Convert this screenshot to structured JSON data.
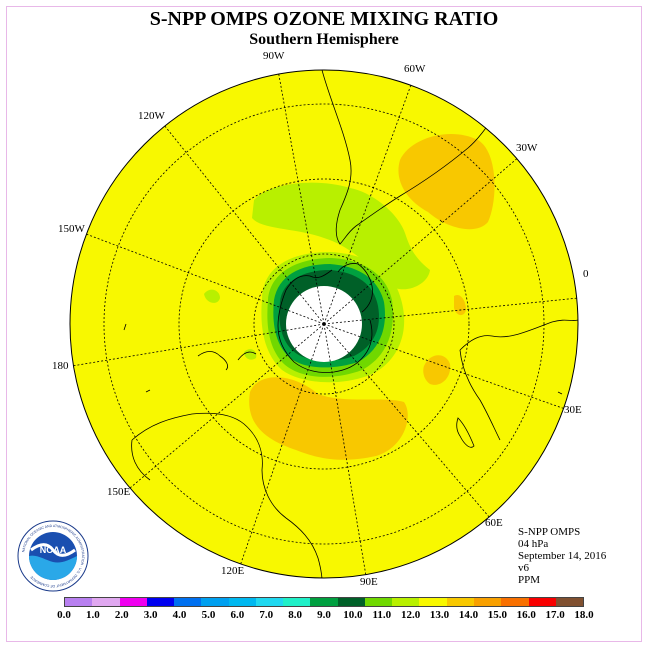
{
  "title": "S-NPP OMPS OZONE MIXING RATIO",
  "subtitle": "Southern Hemisphere",
  "longitude_labels": [
    "90W",
    "60W",
    "30W",
    "0",
    "30E",
    "60E",
    "90E",
    "120E",
    "150E",
    "180",
    "150W",
    "120W"
  ],
  "info": {
    "line1": "S-NPP OMPS",
    "line2": "04 hPa",
    "line3": "September 14, 2016",
    "line4": "v6",
    "line5": "PPM"
  },
  "logo": {
    "wordmark": "NOAA",
    "ring_text": "NATIONAL OCEANIC AND ATMOSPHERIC ADMINISTRATION · U.S. DEPARTMENT OF COMMERCE"
  },
  "colorbar": {
    "ticks": [
      "0.0",
      "1.0",
      "2.0",
      "3.0",
      "4.0",
      "5.0",
      "6.0",
      "7.0",
      "8.0",
      "9.0",
      "10.0",
      "11.0",
      "12.0",
      "13.0",
      "14.0",
      "15.0",
      "16.0",
      "17.0",
      "18.0"
    ],
    "colors": [
      "#b880f0",
      "#e0a8f0",
      "#f000f0",
      "#0000f0",
      "#0070f0",
      "#00a0f0",
      "#00b8f0",
      "#20d8f0",
      "#20f0c8",
      "#00a040",
      "#006028",
      "#70d800",
      "#b8f000",
      "#f8f800",
      "#f8c800",
      "#f8a000",
      "#f87000",
      "#f80000"
    ],
    "last_color": "#805030"
  },
  "map_colors": {
    "background": "#f8f800",
    "hole": "#ffffff",
    "dark_green": "#006028",
    "mid_green": "#00a040",
    "light_green": "#70d800",
    "pale_green": "#b8f000",
    "orange": "#f8c800"
  }
}
